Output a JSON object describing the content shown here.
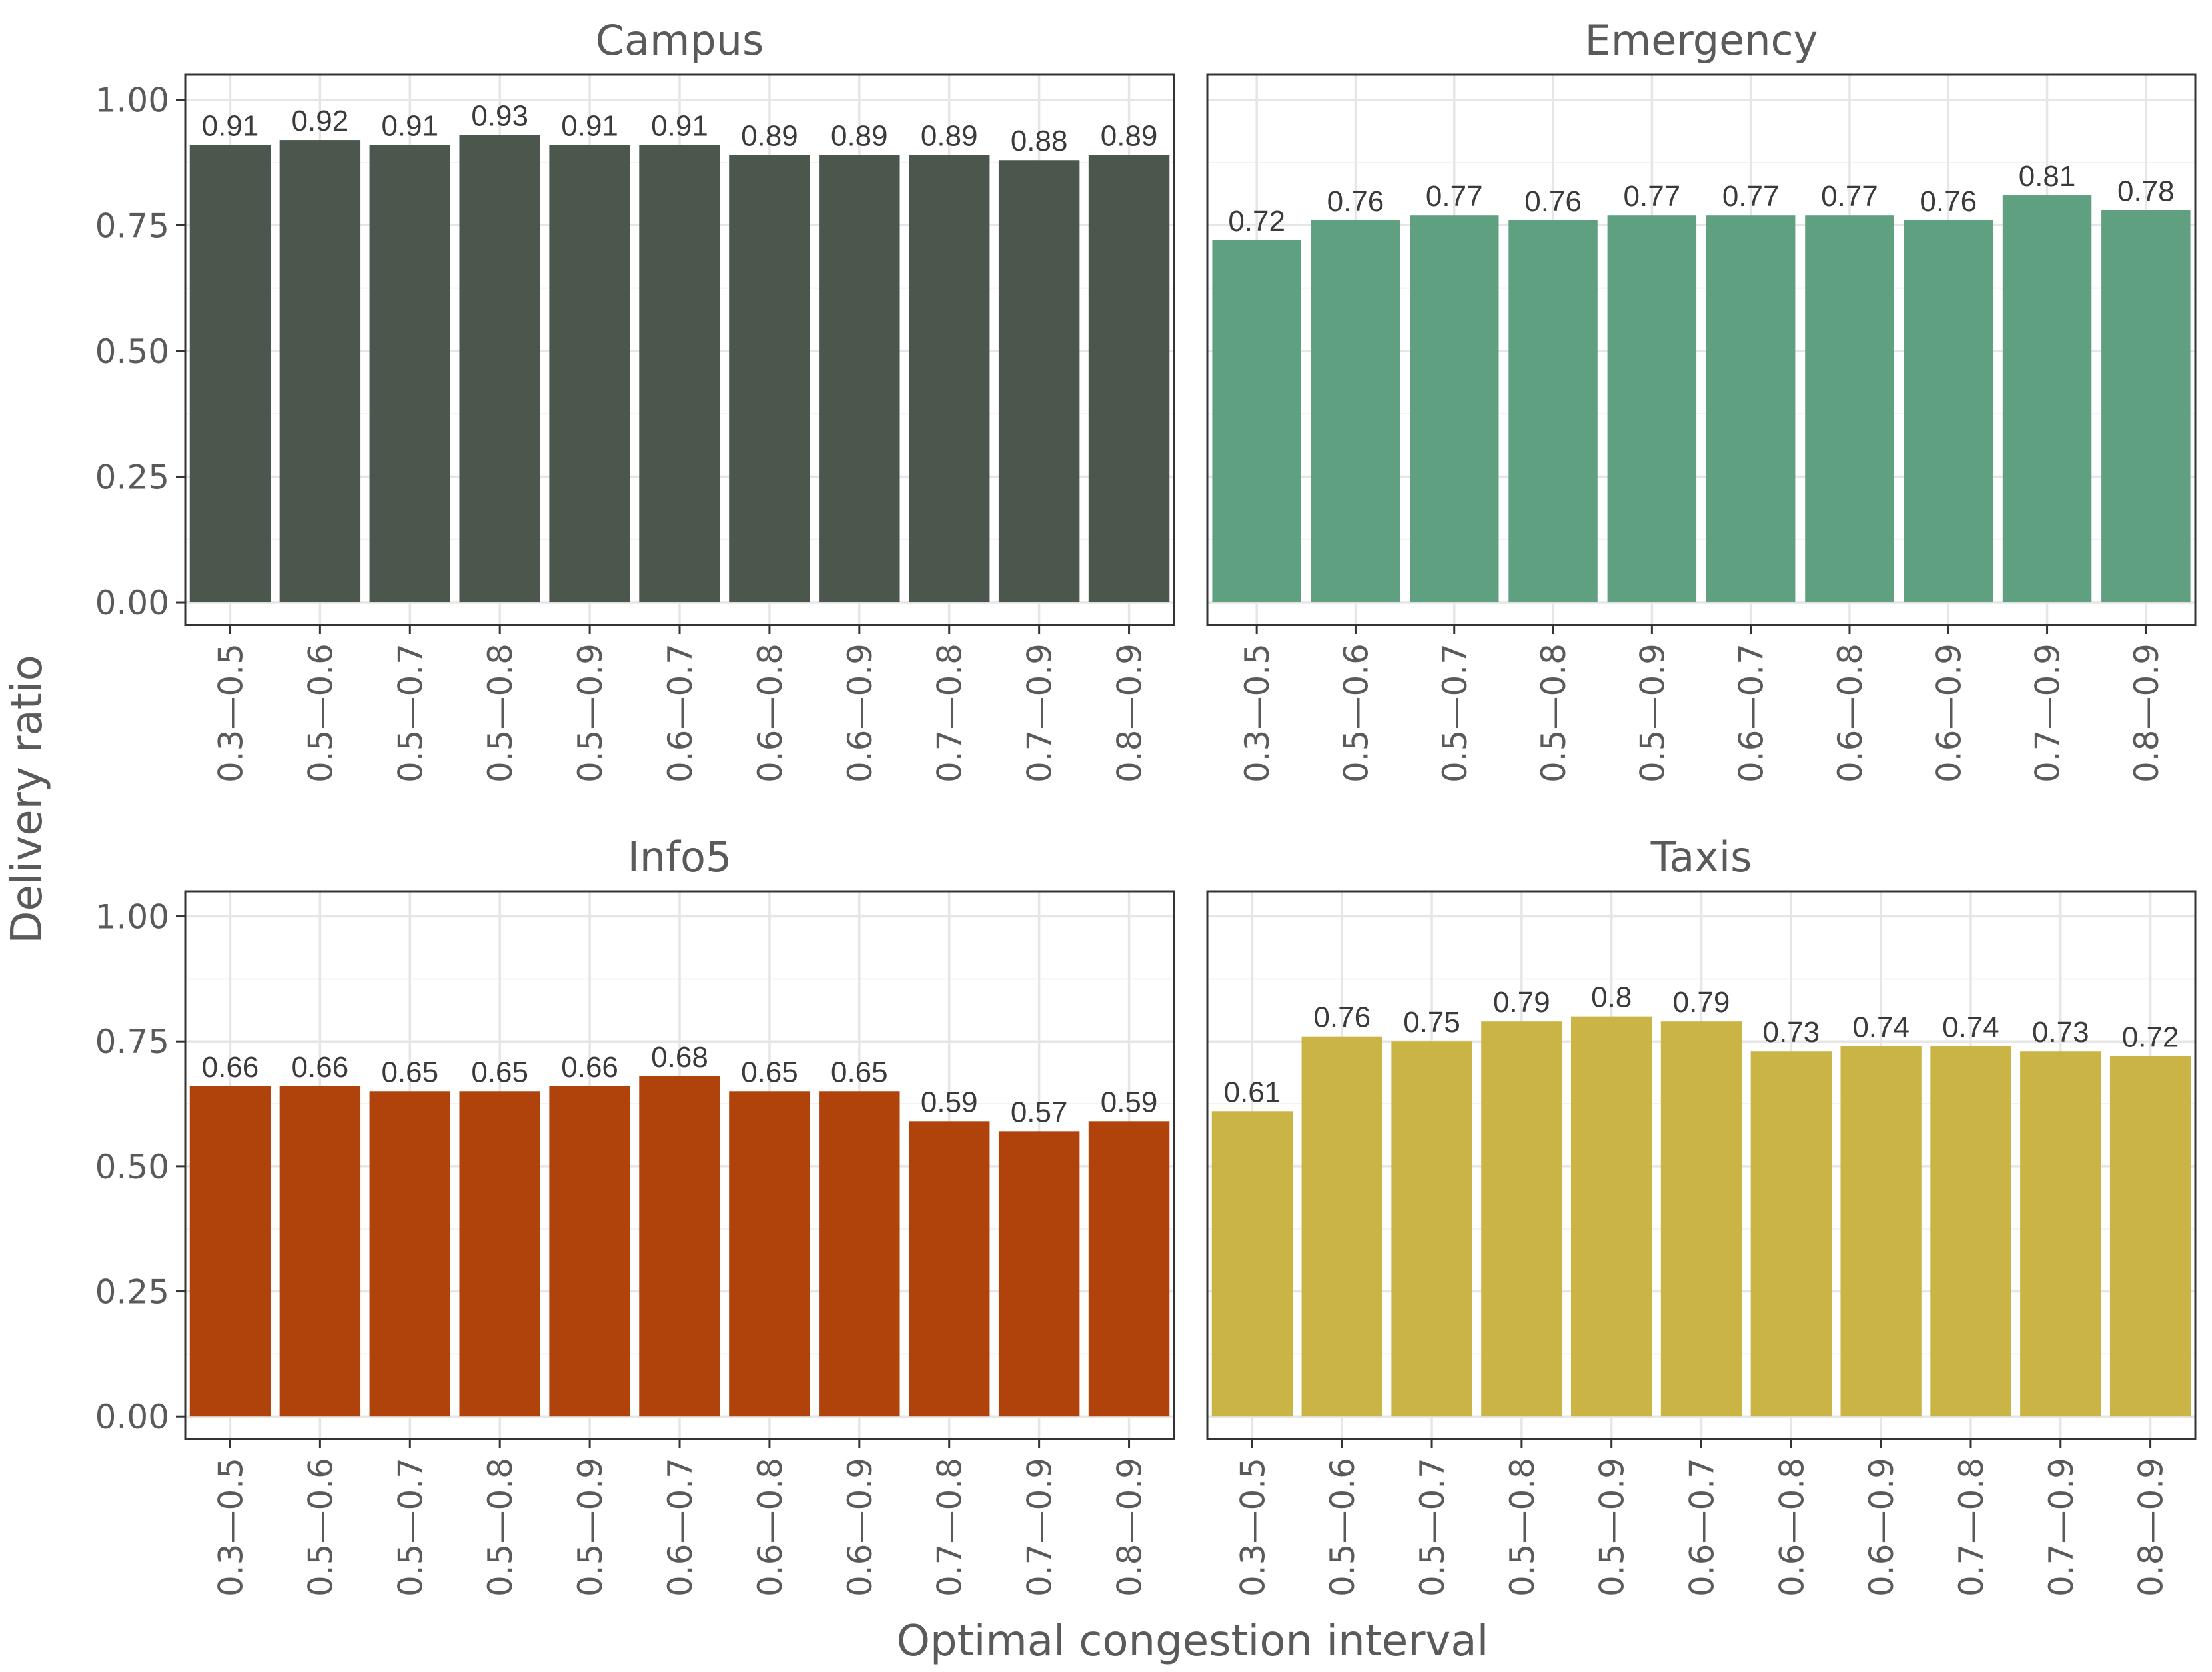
{
  "chart_data": [
    {
      "type": "bar",
      "title": "Campus",
      "color": "#4b574d",
      "categories": [
        "0.3—0.5",
        "0.5—0.6",
        "0.5—0.7",
        "0.5—0.8",
        "0.5—0.9",
        "0.6—0.7",
        "0.6—0.8",
        "0.6—0.9",
        "0.7—0.8",
        "0.7—0.9",
        "0.8—0.9"
      ],
      "values": [
        0.91,
        0.92,
        0.91,
        0.93,
        0.91,
        0.91,
        0.89,
        0.89,
        0.89,
        0.88,
        0.89
      ],
      "value_labels": [
        "0.91",
        "0.92",
        "0.91",
        "0.93",
        "0.91",
        "0.91",
        "0.89",
        "0.89",
        "0.89",
        "0.88",
        "0.89"
      ],
      "yticks": [
        "0.00",
        "0.25",
        "0.50",
        "0.75",
        "1.00"
      ],
      "ylim": [
        0,
        1.05
      ]
    },
    {
      "type": "bar",
      "title": "Emergency",
      "color": "#5fa081",
      "categories": [
        "0.3—0.5",
        "0.5—0.6",
        "0.5—0.7",
        "0.5—0.8",
        "0.5—0.9",
        "0.6—0.7",
        "0.6—0.8",
        "0.6—0.9",
        "0.7—0.9",
        "0.8—0.9"
      ],
      "values": [
        0.72,
        0.76,
        0.77,
        0.76,
        0.77,
        0.77,
        0.77,
        0.76,
        0.81,
        0.78
      ],
      "value_labels": [
        "0.72",
        "0.76",
        "0.77",
        "0.76",
        "0.77",
        "0.77",
        "0.77",
        "0.76",
        "0.81",
        "0.78"
      ],
      "yticks": [],
      "ylim": [
        0,
        1.05
      ]
    },
    {
      "type": "bar",
      "title": "Info5",
      "color": "#b0420c",
      "categories": [
        "0.3—0.5",
        "0.5—0.6",
        "0.5—0.7",
        "0.5—0.8",
        "0.5—0.9",
        "0.6—0.7",
        "0.6—0.8",
        "0.6—0.9",
        "0.7—0.8",
        "0.7—0.9",
        "0.8—0.9"
      ],
      "values": [
        0.66,
        0.66,
        0.65,
        0.65,
        0.66,
        0.68,
        0.65,
        0.65,
        0.59,
        0.57,
        0.59
      ],
      "value_labels": [
        "0.66",
        "0.66",
        "0.65",
        "0.65",
        "0.66",
        "0.68",
        "0.65",
        "0.65",
        "0.59",
        "0.57",
        "0.59"
      ],
      "yticks": [
        "0.00",
        "0.25",
        "0.50",
        "0.75",
        "1.00"
      ],
      "ylim": [
        0,
        1.05
      ]
    },
    {
      "type": "bar",
      "title": "Taxis",
      "color": "#cbb446",
      "categories": [
        "0.3—0.5",
        "0.5—0.6",
        "0.5—0.7",
        "0.5—0.8",
        "0.5—0.9",
        "0.6—0.7",
        "0.6—0.8",
        "0.6—0.9",
        "0.7—0.8",
        "0.7—0.9",
        "0.8—0.9"
      ],
      "values": [
        0.61,
        0.76,
        0.75,
        0.79,
        0.8,
        0.79,
        0.73,
        0.74,
        0.74,
        0.73,
        0.72
      ],
      "value_labels": [
        "0.61",
        "0.76",
        "0.75",
        "0.79",
        "0.8",
        "0.79",
        "0.73",
        "0.74",
        "0.74",
        "0.73",
        "0.72"
      ],
      "yticks": [],
      "ylim": [
        0,
        1.05
      ]
    }
  ],
  "axes": {
    "ylabel": "Delivery ratio",
    "xlabel": "Optimal congestion interval"
  }
}
